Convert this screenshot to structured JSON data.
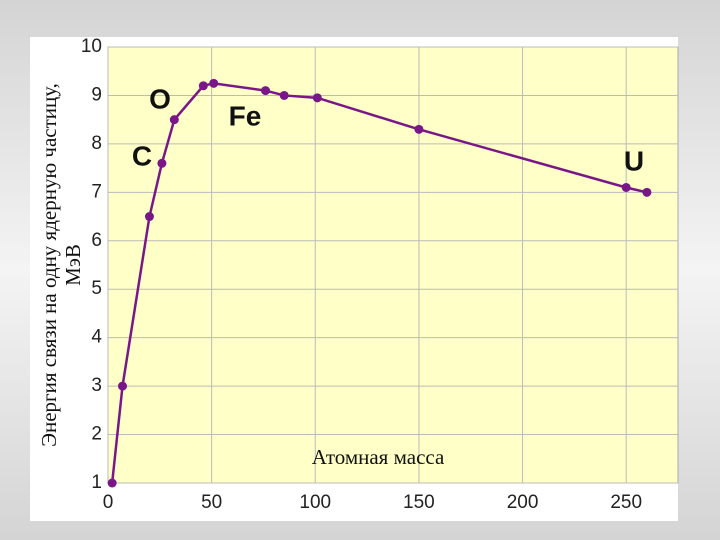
{
  "chart_data": {
    "type": "line",
    "x_label": "Атомная масса",
    "y_label": [
      "Энергия связи на одну ядерную частицу,",
      "МэВ"
    ],
    "annotations": [
      "O",
      "Fe",
      "C",
      "U"
    ],
    "x": [
      2,
      7,
      20,
      26,
      32,
      46,
      51,
      76,
      85,
      101,
      150,
      250,
      260
    ],
    "values": [
      1,
      3.0,
      6.5,
      7.6,
      8.5,
      9.2,
      9.25,
      9.1,
      9.0,
      8.95,
      8.3,
      7.1,
      7.0
    ],
    "color": "#7a1788",
    "xlim": [
      0,
      275
    ],
    "xticks": [
      0,
      50,
      100,
      150,
      200,
      250
    ],
    "ylim": [
      1,
      10
    ],
    "yticks": [
      1,
      2,
      3,
      4,
      5,
      6,
      7,
      8,
      9,
      10
    ],
    "grid": true
  }
}
